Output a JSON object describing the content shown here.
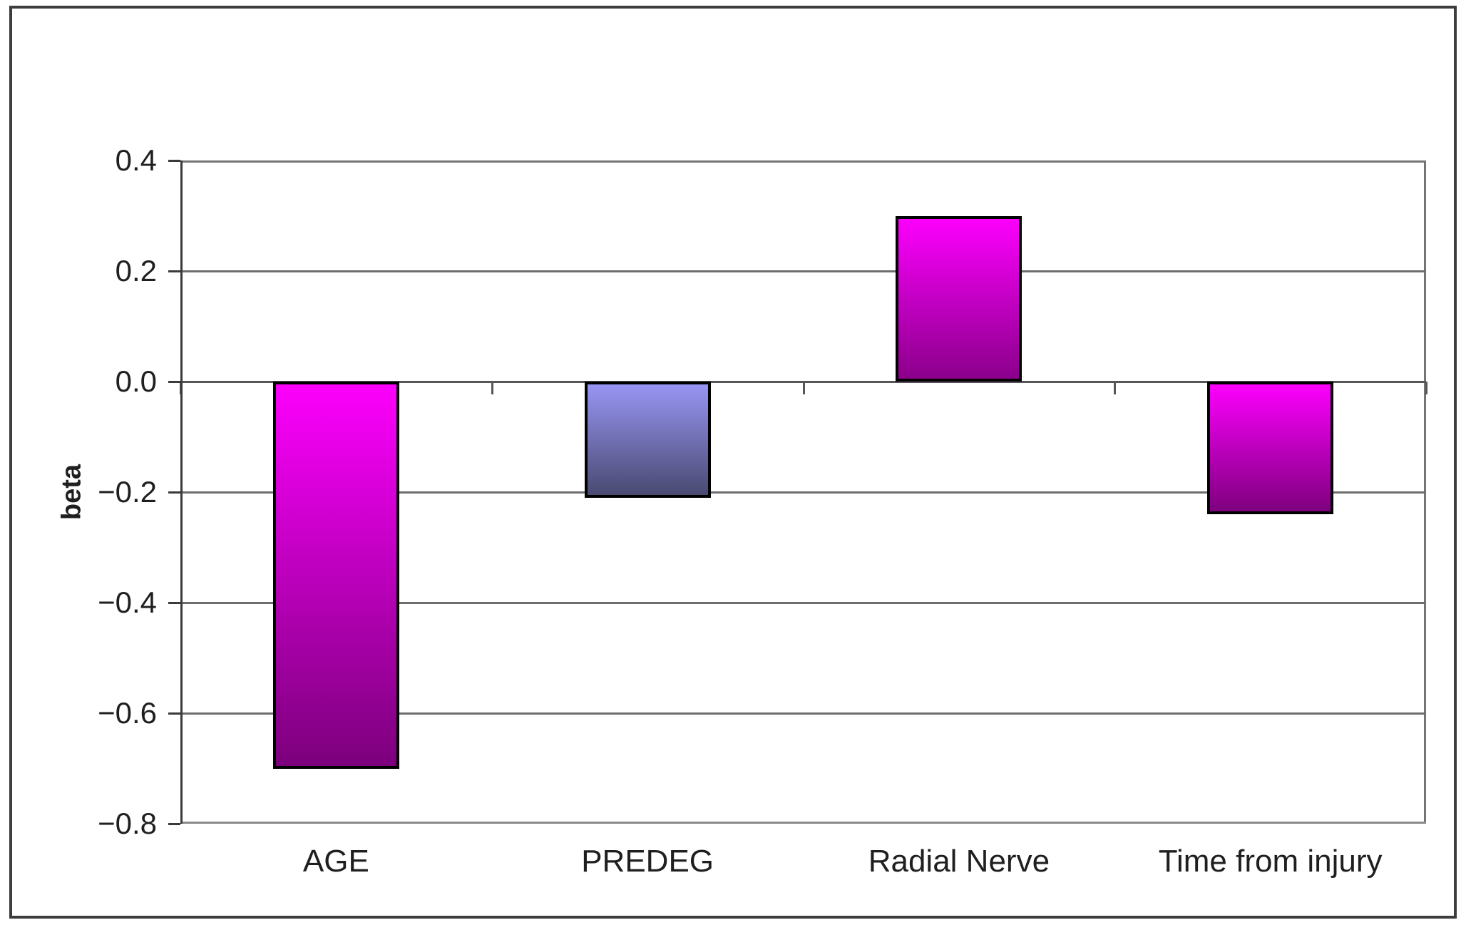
{
  "chart_data": {
    "type": "bar",
    "title": "",
    "xlabel": "",
    "ylabel": "beta",
    "categories": [
      "AGE",
      "PREDEG",
      "Radial Nerve",
      "Time from injury"
    ],
    "values": [
      -0.7,
      -0.21,
      0.3,
      -0.24
    ],
    "ylim": [
      -0.8,
      0.4
    ],
    "ytick_step": 0.2,
    "yticks": [
      {
        "label": "0.4",
        "value": 0.4
      },
      {
        "label": "0.2",
        "value": 0.2
      },
      {
        "label": "0.0",
        "value": 0.0
      },
      {
        "label": "−0.2",
        "value": -0.2
      },
      {
        "label": "−0.4",
        "value": -0.4
      },
      {
        "label": "−0.6",
        "value": -0.6
      },
      {
        "label": "−0.8",
        "value": -0.8
      }
    ],
    "grid": true,
    "legend": "none",
    "bar_fill_gradients": [
      {
        "top": "#fc00fc",
        "bottom": "#7c007c"
      },
      {
        "top": "#9795f3",
        "bottom": "#4a4a72"
      },
      {
        "top": "#fc00fc",
        "bottom": "#8b008b"
      },
      {
        "top": "#fc00fc",
        "bottom": "#7e007e"
      }
    ],
    "bar_border_color": "#000000",
    "colors": {
      "background": "#ffffff",
      "figure_border": "#3d3d3d",
      "axis": "#3a3a3a",
      "gridline": "#6e6e6e",
      "zero_line": "#565656",
      "plot_frame": "#757575",
      "text": "#1f1f1f"
    }
  }
}
